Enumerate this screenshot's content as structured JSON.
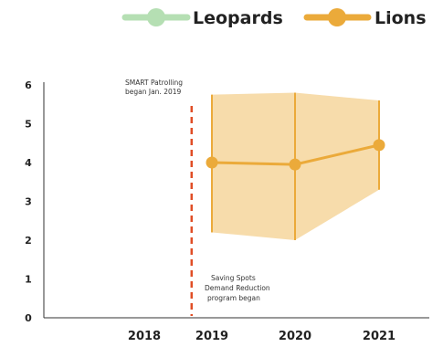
{
  "chart_data": {
    "type": "line",
    "title": "",
    "xlabel": "",
    "ylabel": "",
    "x": [
      "2018",
      "2019",
      "2020",
      "2021"
    ],
    "ylim": [
      0,
      6
    ],
    "yticks": [
      0,
      1,
      2,
      3,
      4,
      5,
      6
    ],
    "grid": false,
    "legend_position": "top",
    "series": [
      {
        "name": "Leopards",
        "color": "#b5dfb3",
        "values": [
          null,
          null,
          null,
          null
        ]
      },
      {
        "name": "Lions",
        "color": "#ebaa3a",
        "band_color": "#f6d8a2",
        "values": [
          null,
          4.0,
          3.95,
          4.45
        ],
        "lower": [
          null,
          2.2,
          2.0,
          3.3
        ],
        "upper": [
          null,
          5.75,
          5.8,
          5.6
        ]
      }
    ],
    "reference_line": {
      "x": 2018.7,
      "color": "#e04e26"
    },
    "annotations": [
      {
        "line1": "SMART Patrolling",
        "line2": "began Jan. 2019"
      },
      {
        "line1": "Saving Spots",
        "line2": "Demand Reduction",
        "line3": "program began"
      }
    ]
  }
}
